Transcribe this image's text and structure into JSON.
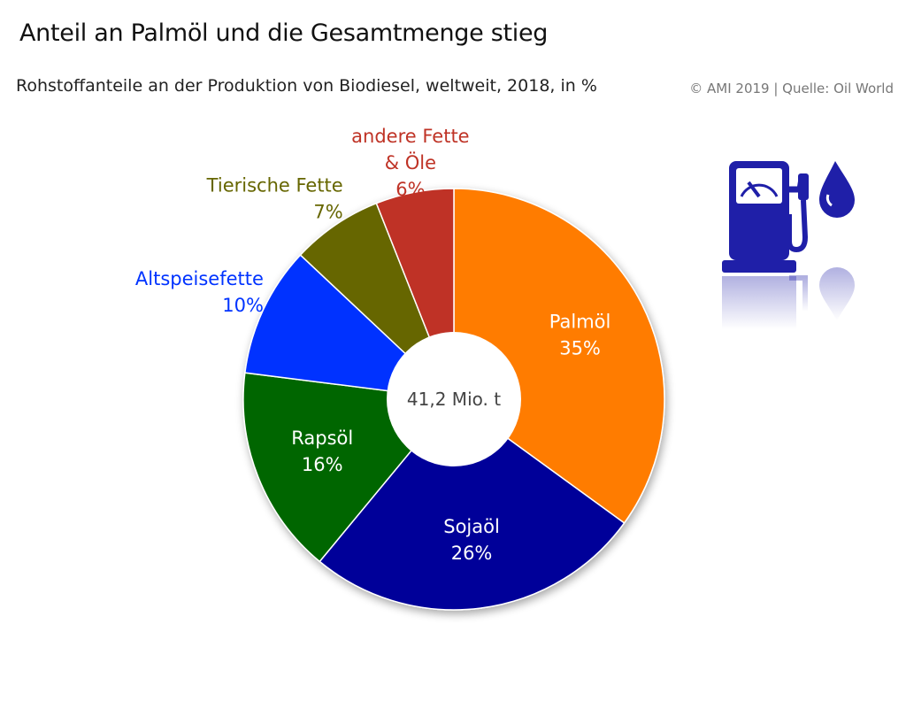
{
  "header": {
    "title": "Anteil an Palmöl und die Gesamtmenge stieg",
    "subtitle": "Rohstoffanteile an der Produktion von Biodiesel, weltweit, 2018, in %",
    "source": "© AMI 2019 | Quelle: Oil World"
  },
  "icons": {
    "fuel_pump": "fuel-pump-icon",
    "fuel_drop": "fuel-drop-icon",
    "color": "#1f1fa8"
  },
  "chart_data": {
    "type": "pie",
    "donut": true,
    "center_label": "41,2 Mio. t",
    "slices": [
      {
        "label": "Palmöl",
        "value": 35,
        "value_label": "35%",
        "color": "#ff7b00",
        "label_color": "#ffffff"
      },
      {
        "label": "Sojaöl",
        "value": 26,
        "value_label": "26%",
        "color": "#000099",
        "label_color": "#ffffff"
      },
      {
        "label": "Rapsöl",
        "value": 16,
        "value_label": "16%",
        "color": "#006600",
        "label_color": "#ffffff"
      },
      {
        "label": "Altspeisefette",
        "value": 10,
        "value_label": "10%",
        "color": "#0033ff",
        "label_color": "#0033ff"
      },
      {
        "label": "Tierische Fette",
        "value": 7,
        "value_label": "7%",
        "color": "#666600",
        "label_color": "#666600"
      },
      {
        "label": "andere Fette & Öle",
        "label_lines": [
          "andere Fette",
          "& Öle"
        ],
        "value": 6,
        "value_label": "6%",
        "color": "#bf3326",
        "label_color": "#bf3326"
      }
    ]
  }
}
